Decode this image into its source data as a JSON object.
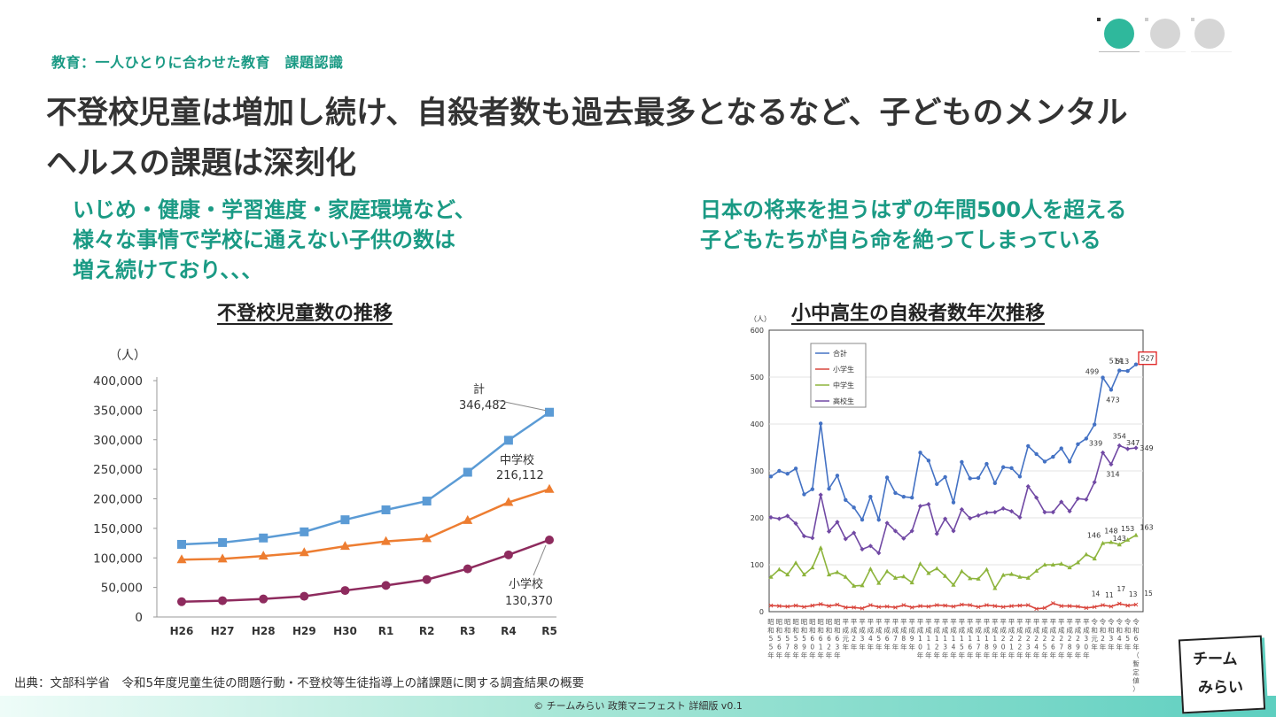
{
  "header": {
    "section_label": "教育：一人ひとりに合わせた教育　課題認識",
    "title": "不登校児童は増加し続け、自殺者数も過去最多となるなど、子どものメンタルヘルスの課題は深刻化"
  },
  "leads": {
    "left": [
      "いじめ・健康・学習進度・家庭環境など、",
      "様々な事情で学校に通えない子供の数は",
      "増え続けており、、、"
    ],
    "right": [
      "日本の将来を担うはずの年間500人を超える",
      "子どもたちが自ら命を絶ってしまっている"
    ]
  },
  "colors": {
    "accent": "#1a9a84",
    "blue": "#5b9bd5",
    "orange": "#ed7d31",
    "purple": "#8e2b5e"
  },
  "chart_data": [
    {
      "type": "line",
      "title": "不登校児童数の推移",
      "unit": "（人）",
      "categories": [
        "H26",
        "H27",
        "H28",
        "H29",
        "H30",
        "R1",
        "R2",
        "R3",
        "R4",
        "R5"
      ],
      "ylim": [
        0,
        400000
      ],
      "yticks": [
        "0",
        "50,000",
        "100,000",
        "150,000",
        "200,000",
        "250,000",
        "300,000",
        "350,000",
        "400,000"
      ],
      "series": [
        {
          "name": "計",
          "color": "#5b9bd5",
          "marker": "square",
          "label": "346,482",
          "values": [
            122897,
            125991,
            133683,
            144031,
            164528,
            181272,
            196127,
            244940,
            299048,
            346482
          ]
        },
        {
          "name": "中学校",
          "color": "#ed7d31",
          "marker": "triangle",
          "label": "216,112",
          "values": [
            97033,
            98408,
            103235,
            108999,
            119687,
            127922,
            132777,
            163442,
            193936,
            216112
          ]
        },
        {
          "name": "小学校",
          "color": "#8e2b5e",
          "marker": "circle",
          "label": "130,370",
          "values": [
            25864,
            27583,
            30448,
            35032,
            44841,
            53350,
            63350,
            81498,
            105112,
            130370
          ]
        }
      ]
    },
    {
      "type": "line",
      "title": "小中高生の自殺者数年次推移",
      "unit": "（人）",
      "ylim": [
        0,
        600
      ],
      "yticks": [
        "0",
        "100",
        "200",
        "300",
        "400",
        "500",
        "600"
      ],
      "x_labels": [
        "昭和55年",
        "昭和56年",
        "昭和57年",
        "昭和58年",
        "昭和59年",
        "昭和60年",
        "昭和61年",
        "昭和62年",
        "昭和63年",
        "平成元年",
        "平成2年",
        "平成3年",
        "平成4年",
        "平成5年",
        "平成6年",
        "平成7年",
        "平成8年",
        "平成9年",
        "平成10年",
        "平成11年",
        "平成12年",
        "平成13年",
        "平成14年",
        "平成15年",
        "平成16年",
        "平成17年",
        "平成18年",
        "平成19年",
        "平成20年",
        "平成21年",
        "平成22年",
        "平成23年",
        "平成24年",
        "平成25年",
        "平成26年",
        "平成27年",
        "平成28年",
        "平成29年",
        "平成30年",
        "令和元年",
        "令和2年",
        "令和3年",
        "令和4年",
        "令和5年",
        "令和6年（暫定値）"
      ],
      "legend": [
        "合計",
        "小学生",
        "中学生",
        "高校生"
      ],
      "series": [
        {
          "name": "合計",
          "color": "#4472c4",
          "values": [
            288,
            300,
            294,
            305,
            250,
            261,
            401,
            262,
            290,
            238,
            222,
            196,
            245,
            196,
            286,
            253,
            245,
            243,
            339,
            322,
            272,
            287,
            233,
            319,
            284,
            285,
            315,
            274,
            308,
            306,
            288,
            353,
            336,
            320,
            330,
            348,
            320,
            357,
            369,
            399,
            499,
            473,
            514,
            513,
            527
          ]
        },
        {
          "name": "小学生",
          "color": "#d9453c",
          "values": [
            13,
            12,
            11,
            13,
            10,
            13,
            16,
            12,
            15,
            9,
            9,
            7,
            14,
            10,
            11,
            9,
            14,
            9,
            12,
            11,
            14,
            13,
            11,
            15,
            14,
            10,
            14,
            12,
            10,
            12,
            13,
            14,
            6,
            8,
            18,
            12,
            12,
            11,
            8,
            10,
            14,
            11,
            17,
            13,
            15
          ]
        },
        {
          "name": "中学生",
          "color": "#8db43c",
          "values": [
            74,
            90,
            79,
            104,
            79,
            94,
            136,
            79,
            84,
            74,
            55,
            56,
            91,
            61,
            86,
            72,
            75,
            62,
            102,
            82,
            92,
            76,
            57,
            86,
            71,
            70,
            90,
            50,
            78,
            80,
            74,
            72,
            87,
            100,
            100,
            102,
            94,
            105,
            122,
            113,
            146,
            148,
            143,
            153,
            163
          ]
        },
        {
          "name": "高校生",
          "color": "#7149a4",
          "values": [
            201,
            198,
            204,
            188,
            161,
            157,
            249,
            171,
            191,
            155,
            168,
            133,
            140,
            125,
            189,
            172,
            156,
            172,
            225,
            229,
            166,
            198,
            172,
            218,
            199,
            205,
            211,
            212,
            220,
            214,
            201,
            267,
            243,
            212,
            212,
            234,
            214,
            241,
            239,
            276,
            339,
            314,
            354,
            347,
            349
          ]
        }
      ],
      "data_labels": {
        "total_2020": "499",
        "total_2021": "473",
        "total_2022": "514",
        "total_2023": "513",
        "total_2024": "527",
        "high_2020": "339",
        "high_2021": "314",
        "high_2022": "354",
        "high_2023": "347",
        "high_2024": "349",
        "middle_2020": "146",
        "middle_2021": "148",
        "middle_2022": "143",
        "middle_2023": "153",
        "middle_2024": "163",
        "elementary_2020": "14",
        "elementary_2021": "11",
        "elementary_2022": "17",
        "elementary_2023": "13",
        "elementary_2024": "15"
      }
    }
  ],
  "source": "出典：文部科学省　令和5年度児童生徒の問題行動・不登校等生徒指導上の諸課題に関する調査結果の概要",
  "footer": "© チームみらい 政策マニフェスト 詳細版 v0.1",
  "logo": {
    "line1": "チーム",
    "line2": "みらい"
  }
}
